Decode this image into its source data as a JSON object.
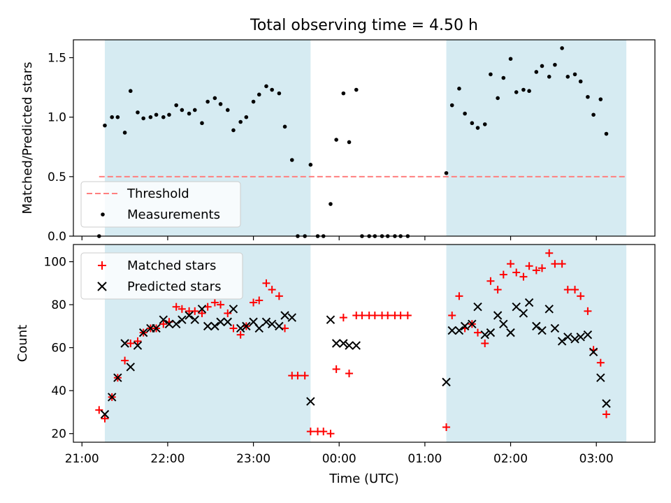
{
  "chart_data": {
    "title": "Total observing time = 4.50 h",
    "xlabel": "Time (UTC)",
    "x_ticks": [
      "21:00",
      "22:00",
      "23:00",
      "00:00",
      "01:00",
      "02:00",
      "03:00"
    ],
    "x_range": [
      "20:54",
      "03:41"
    ],
    "shaded_intervals": [
      [
        "21:16",
        "23:40"
      ],
      [
        "01:15",
        "03:21"
      ]
    ],
    "colors": {
      "shade": "#add8e6",
      "threshold": "#ff7f7f",
      "measurements": "#000000",
      "matched": "#ff0000",
      "predicted": "#000000"
    },
    "panels": [
      {
        "type": "scatter",
        "ylabel": "Matched/Predicted stars",
        "ylim": [
          0,
          1.65
        ],
        "y_ticks": [
          "0.0",
          "0.5",
          "1.0",
          "1.5"
        ],
        "grid": false,
        "legend": "lower-left",
        "threshold": {
          "name": "Threshold",
          "y": 0.5,
          "x_start": "21:12",
          "x_end": "03:21"
        },
        "series": [
          {
            "name": "Measurements",
            "marker": "dot",
            "points": [
              [
                "21:12",
                0.0
              ],
              [
                "21:16",
                0.93
              ],
              [
                "21:21",
                1.0
              ],
              [
                "21:25",
                1.0
              ],
              [
                "21:30",
                0.87
              ],
              [
                "21:34",
                1.22
              ],
              [
                "21:39",
                1.04
              ],
              [
                "21:43",
                0.99
              ],
              [
                "21:48",
                1.0
              ],
              [
                "21:52",
                1.02
              ],
              [
                "21:57",
                1.0
              ],
              [
                "22:01",
                1.02
              ],
              [
                "22:06",
                1.1
              ],
              [
                "22:10",
                1.06
              ],
              [
                "22:15",
                1.03
              ],
              [
                "22:19",
                1.06
              ],
              [
                "22:24",
                0.95
              ],
              [
                "22:28",
                1.13
              ],
              [
                "22:33",
                1.16
              ],
              [
                "22:37",
                1.11
              ],
              [
                "22:42",
                1.06
              ],
              [
                "22:46",
                0.89
              ],
              [
                "22:51",
                0.96
              ],
              [
                "22:55",
                1.0
              ],
              [
                "23:00",
                1.13
              ],
              [
                "23:04",
                1.19
              ],
              [
                "23:09",
                1.26
              ],
              [
                "23:13",
                1.23
              ],
              [
                "23:18",
                1.2
              ],
              [
                "23:22",
                0.92
              ],
              [
                "23:27",
                0.64
              ],
              [
                "23:31",
                0.0
              ],
              [
                "23:36",
                0.0
              ],
              [
                "23:40",
                0.6
              ],
              [
                "23:45",
                0.0
              ],
              [
                "23:49",
                0.0
              ],
              [
                "23:54",
                0.27
              ],
              [
                "23:58",
                0.81
              ],
              [
                "00:03",
                1.2
              ],
              [
                "00:07",
                0.79
              ],
              [
                "00:12",
                1.23
              ],
              [
                "00:16",
                0.0
              ],
              [
                "00:21",
                0.0
              ],
              [
                "00:25",
                0.0
              ],
              [
                "00:30",
                0.0
              ],
              [
                "00:34",
                0.0
              ],
              [
                "00:39",
                0.0
              ],
              [
                "00:43",
                0.0
              ],
              [
                "00:48",
                0.0
              ],
              [
                "01:15",
                0.53
              ],
              [
                "01:19",
                1.1
              ],
              [
                "01:24",
                1.24
              ],
              [
                "01:28",
                1.03
              ],
              [
                "01:33",
                0.95
              ],
              [
                "01:37",
                0.91
              ],
              [
                "01:42",
                0.94
              ],
              [
                "01:46",
                1.36
              ],
              [
                "01:51",
                1.16
              ],
              [
                "01:55",
                1.33
              ],
              [
                "02:00",
                1.49
              ],
              [
                "02:04",
                1.21
              ],
              [
                "02:09",
                1.23
              ],
              [
                "02:13",
                1.22
              ],
              [
                "02:18",
                1.38
              ],
              [
                "02:22",
                1.43
              ],
              [
                "02:27",
                1.34
              ],
              [
                "02:31",
                1.44
              ],
              [
                "02:36",
                1.58
              ],
              [
                "02:40",
                1.34
              ],
              [
                "02:45",
                1.36
              ],
              [
                "02:49",
                1.3
              ],
              [
                "02:54",
                1.17
              ],
              [
                "02:58",
                1.02
              ],
              [
                "03:03",
                1.15
              ],
              [
                "03:07",
                0.86
              ]
            ]
          }
        ]
      },
      {
        "type": "scatter",
        "ylabel": "Count",
        "ylim": [
          16,
          108
        ],
        "y_ticks": [
          "20",
          "40",
          "60",
          "80",
          "100"
        ],
        "grid": false,
        "legend": "top-left",
        "series": [
          {
            "name": "Matched stars",
            "marker": "plus",
            "points": [
              [
                "21:12",
                31
              ],
              [
                "21:16",
                27
              ],
              [
                "21:21",
                37
              ],
              [
                "21:25",
                46
              ],
              [
                "21:30",
                54
              ],
              [
                "21:34",
                62
              ],
              [
                "21:39",
                63
              ],
              [
                "21:43",
                67
              ],
              [
                "21:48",
                69
              ],
              [
                "21:52",
                69
              ],
              [
                "21:57",
                71
              ],
              [
                "22:01",
                72
              ],
              [
                "22:06",
                79
              ],
              [
                "22:10",
                78
              ],
              [
                "22:15",
                77
              ],
              [
                "22:19",
                77
              ],
              [
                "22:24",
                76
              ],
              [
                "22:28",
                79
              ],
              [
                "22:33",
                81
              ],
              [
                "22:37",
                80
              ],
              [
                "22:42",
                76
              ],
              [
                "22:46",
                69
              ],
              [
                "22:51",
                66
              ],
              [
                "22:55",
                70
              ],
              [
                "23:00",
                81
              ],
              [
                "23:04",
                82
              ],
              [
                "23:09",
                90
              ],
              [
                "23:13",
                87
              ],
              [
                "23:18",
                84
              ],
              [
                "23:22",
                69
              ],
              [
                "23:27",
                47
              ],
              [
                "23:31",
                47
              ],
              [
                "23:36",
                47
              ],
              [
                "23:40",
                21
              ],
              [
                "23:45",
                21
              ],
              [
                "23:49",
                21
              ],
              [
                "23:54",
                20
              ],
              [
                "23:58",
                50
              ],
              [
                "00:03",
                74
              ],
              [
                "00:07",
                48
              ],
              [
                "00:12",
                75
              ],
              [
                "00:16",
                75
              ],
              [
                "00:21",
                75
              ],
              [
                "00:25",
                75
              ],
              [
                "00:30",
                75
              ],
              [
                "00:34",
                75
              ],
              [
                "00:39",
                75
              ],
              [
                "00:43",
                75
              ],
              [
                "00:48",
                75
              ],
              [
                "01:15",
                23
              ],
              [
                "01:19",
                75
              ],
              [
                "01:24",
                84
              ],
              [
                "01:28",
                69
              ],
              [
                "01:33",
                71
              ],
              [
                "01:37",
                67
              ],
              [
                "01:42",
                62
              ],
              [
                "01:46",
                91
              ],
              [
                "01:51",
                87
              ],
              [
                "01:55",
                94
              ],
              [
                "02:00",
                99
              ],
              [
                "02:04",
                95
              ],
              [
                "02:09",
                93
              ],
              [
                "02:13",
                98
              ],
              [
                "02:18",
                96
              ],
              [
                "02:22",
                97
              ],
              [
                "02:27",
                104
              ],
              [
                "02:31",
                99
              ],
              [
                "02:36",
                99
              ],
              [
                "02:40",
                87
              ],
              [
                "02:45",
                87
              ],
              [
                "02:49",
                84
              ],
              [
                "02:54",
                77
              ],
              [
                "02:58",
                59
              ],
              [
                "03:03",
                53
              ],
              [
                "03:07",
                29
              ]
            ]
          },
          {
            "name": "Predicted stars",
            "marker": "x",
            "points": [
              [
                "21:16",
                29
              ],
              [
                "21:21",
                37
              ],
              [
                "21:25",
                46
              ],
              [
                "21:30",
                62
              ],
              [
                "21:34",
                51
              ],
              [
                "21:39",
                61
              ],
              [
                "21:43",
                67
              ],
              [
                "21:48",
                69
              ],
              [
                "21:52",
                69
              ],
              [
                "21:57",
                73
              ],
              [
                "22:01",
                71
              ],
              [
                "22:06",
                71
              ],
              [
                "22:10",
                73
              ],
              [
                "22:15",
                75
              ],
              [
                "22:19",
                73
              ],
              [
                "22:24",
                78
              ],
              [
                "22:28",
                70
              ],
              [
                "22:33",
                70
              ],
              [
                "22:37",
                72
              ],
              [
                "22:42",
                72
              ],
              [
                "22:46",
                78
              ],
              [
                "22:51",
                69
              ],
              [
                "22:55",
                70
              ],
              [
                "23:00",
                72
              ],
              [
                "23:04",
                69
              ],
              [
                "23:09",
                72
              ],
              [
                "23:13",
                71
              ],
              [
                "23:18",
                70
              ],
              [
                "23:22",
                75
              ],
              [
                "23:27",
                74
              ],
              [
                "23:40",
                35
              ],
              [
                "23:54",
                73
              ],
              [
                "23:58",
                62
              ],
              [
                "00:03",
                62
              ],
              [
                "00:07",
                61
              ],
              [
                "00:12",
                61
              ],
              [
                "01:15",
                44
              ],
              [
                "01:19",
                68
              ],
              [
                "01:24",
                68
              ],
              [
                "01:28",
                70
              ],
              [
                "01:33",
                71
              ],
              [
                "01:37",
                79
              ],
              [
                "01:42",
                66
              ],
              [
                "01:46",
                67
              ],
              [
                "01:51",
                75
              ],
              [
                "01:55",
                71
              ],
              [
                "02:00",
                67
              ],
              [
                "02:04",
                79
              ],
              [
                "02:09",
                76
              ],
              [
                "02:13",
                81
              ],
              [
                "02:18",
                70
              ],
              [
                "02:22",
                68
              ],
              [
                "02:27",
                78
              ],
              [
                "02:31",
                69
              ],
              [
                "02:36",
                63
              ],
              [
                "02:40",
                65
              ],
              [
                "02:45",
                64
              ],
              [
                "02:49",
                65
              ],
              [
                "02:54",
                66
              ],
              [
                "02:58",
                58
              ],
              [
                "03:03",
                46
              ],
              [
                "03:07",
                34
              ]
            ]
          }
        ]
      }
    ]
  }
}
